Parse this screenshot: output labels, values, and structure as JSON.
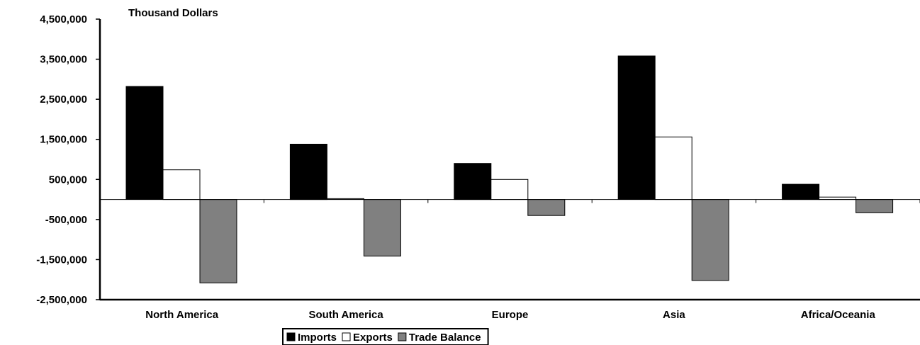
{
  "chart_data": {
    "type": "bar",
    "ylabel": "Thousand Dollars",
    "categories": [
      "North America",
      "South America",
      "Europe",
      "Asia",
      "Africa/Oceania"
    ],
    "series": [
      {
        "name": "Imports",
        "values": [
          2820000,
          1380000,
          900000,
          3580000,
          380000
        ]
      },
      {
        "name": "Exports",
        "values": [
          740000,
          20000,
          500000,
          1560000,
          60000
        ]
      },
      {
        "name": "Trade Balance",
        "values": [
          -2080000,
          -1410000,
          -400000,
          -2020000,
          -330000
        ]
      }
    ],
    "ylim": [
      -2500000,
      4500000
    ],
    "yticks": [
      4500000,
      3500000,
      2500000,
      1500000,
      500000,
      -500000,
      -1500000,
      -2500000
    ],
    "ytick_labels": [
      "4,500,000",
      "3,500,000",
      "2,500,000",
      "1,500,000",
      "500,000",
      "-500,000",
      "-1,500,000",
      "-2,500,000"
    ],
    "grid": false,
    "legend": "bottom",
    "colors": {
      "Imports": "#000000",
      "Exports": "#ffffff",
      "Trade Balance": "#808080"
    }
  }
}
